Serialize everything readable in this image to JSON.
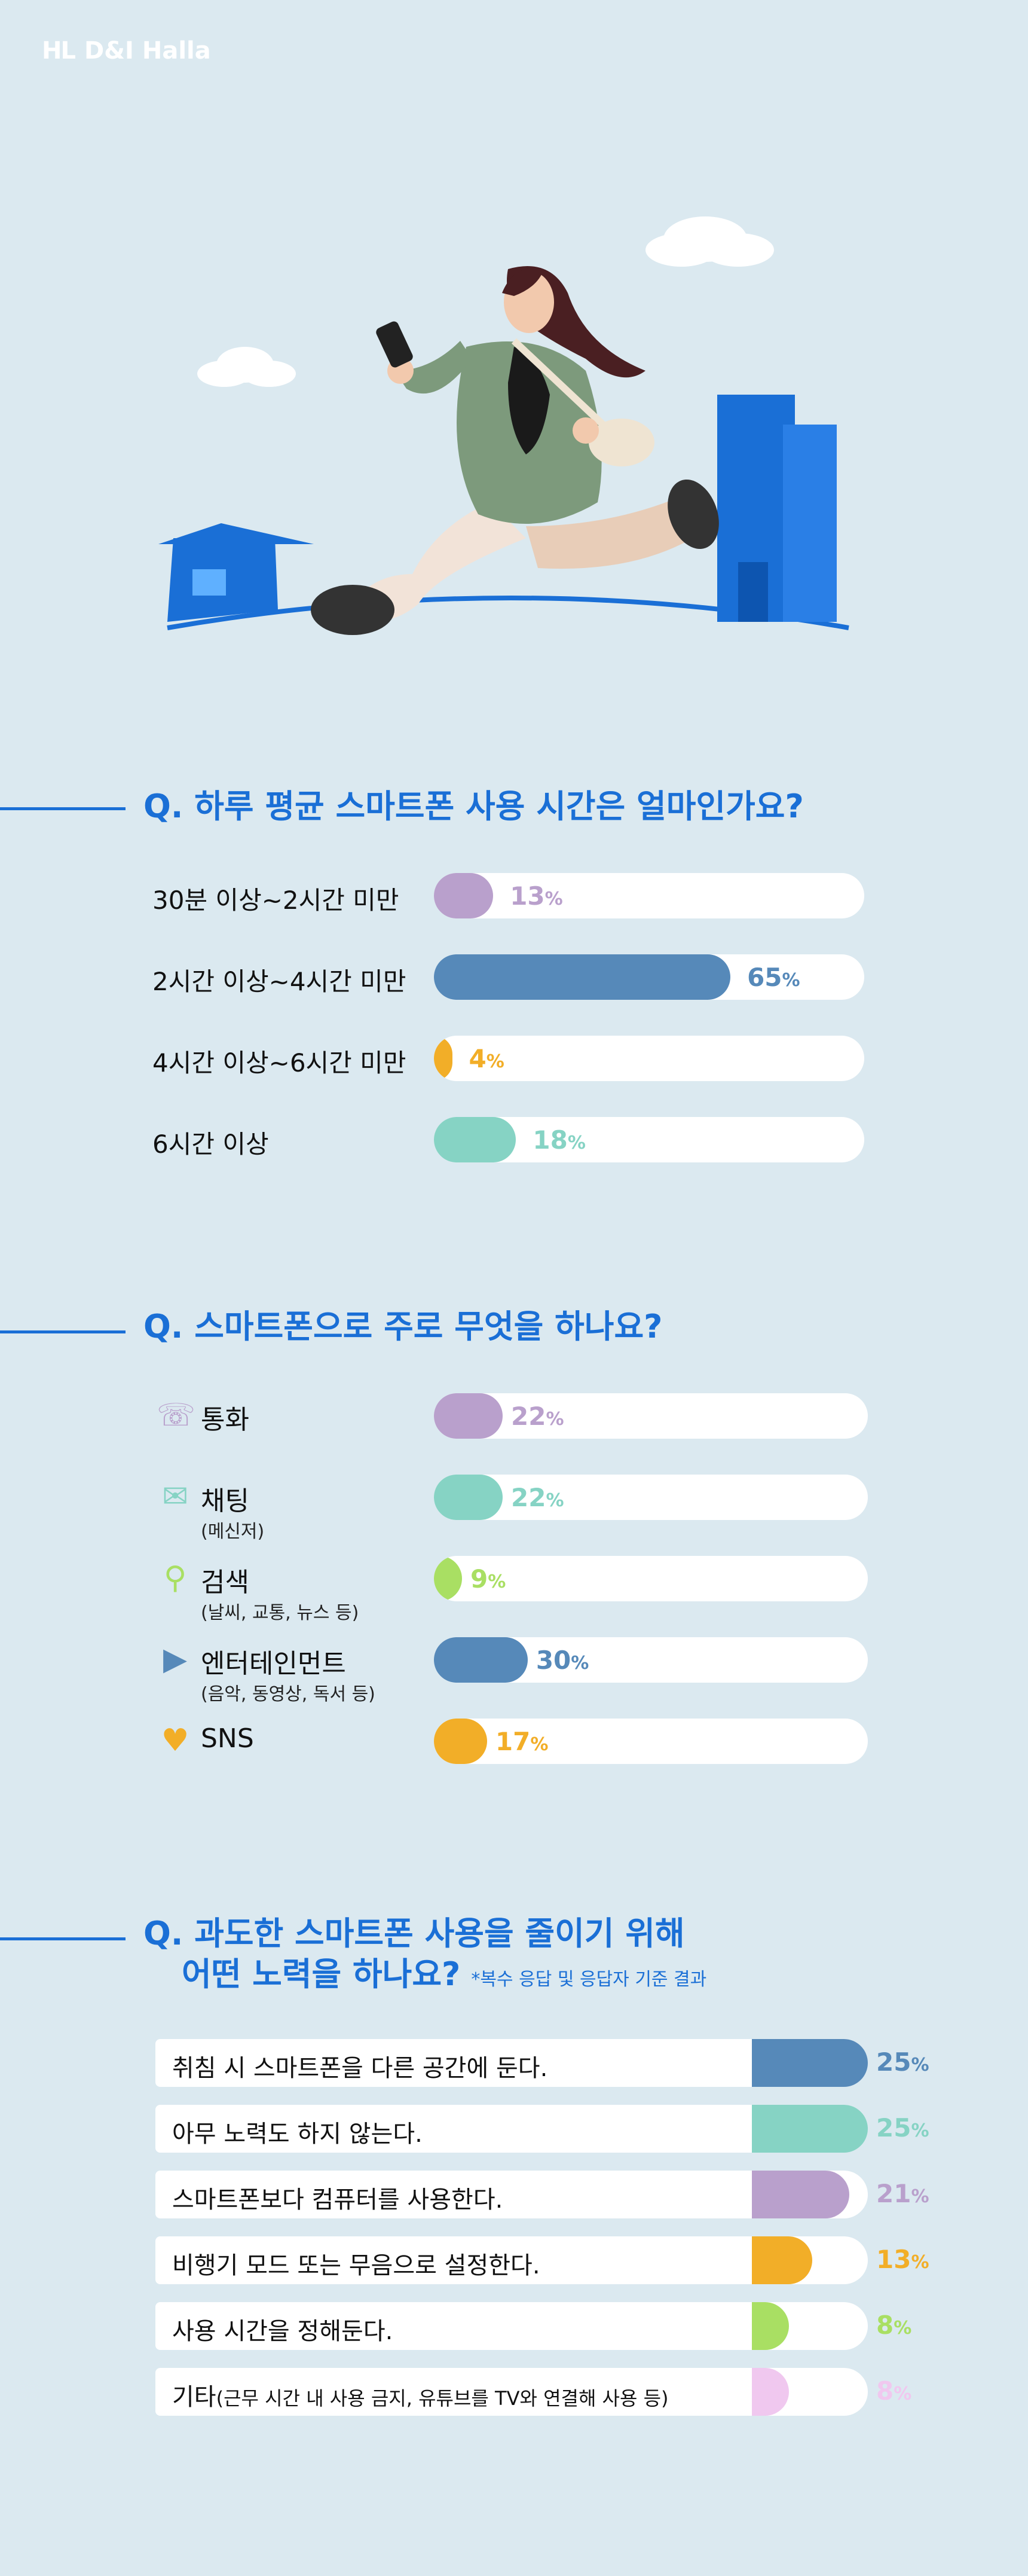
{
  "brand": {
    "mark": "HL",
    "name": "D&I Halla"
  },
  "colors": {
    "background": "#dbe9f0",
    "accent": "#1a6fd6",
    "purple": "#b9a0cc",
    "blue": "#5689b9",
    "orange": "#f2ae28",
    "mint": "#86d3c4",
    "green": "#a9df63",
    "pink": "#f0c8ef"
  },
  "q1": {
    "title": "Q. 하루 평균 스마트폰 사용 시간은 얼마인가요?",
    "items": [
      {
        "label": "30분 이상~2시간 미만",
        "value": 13,
        "display": "13",
        "color": "#b9a0cc"
      },
      {
        "label": "2시간 이상~4시간 미만",
        "value": 65,
        "display": "65",
        "color": "#5689b9"
      },
      {
        "label": "4시간 이상~6시간 미만",
        "value": 4,
        "display": "4",
        "color": "#f2ae28"
      },
      {
        "label": "6시간 이상",
        "value": 18,
        "display": "18",
        "color": "#86d3c4"
      }
    ]
  },
  "q2": {
    "title": "Q. 스마트폰으로 주로 무엇을 하나요?",
    "items": [
      {
        "label": "통화",
        "sub": "",
        "icon": "phone-call-icon",
        "value": 22,
        "display": "22",
        "color": "#b9a0cc"
      },
      {
        "label": "채팅",
        "sub": "(메신저)",
        "icon": "chat-icon",
        "value": 22,
        "display": "22",
        "color": "#86d3c4"
      },
      {
        "label": "검색",
        "sub": "(날씨, 교통, 뉴스 등)",
        "icon": "search-icon",
        "value": 9,
        "display": "9",
        "color": "#a9df63"
      },
      {
        "label": "엔터테인먼트",
        "sub": "(음악, 동영상, 독서 등)",
        "icon": "video-play-icon",
        "value": 30,
        "display": "30",
        "color": "#5689b9"
      },
      {
        "label": "SNS",
        "sub": "",
        "icon": "heart-chat-icon",
        "value": 17,
        "display": "17",
        "color": "#f2ae28"
      }
    ]
  },
  "q3": {
    "title_line1": "Q. 과도한 스마트폰 사용을 줄이기 위해",
    "title_line2": "어떤 노력을 하나요?",
    "note": "*복수 응답 및 응답자 기준 결과",
    "items": [
      {
        "label": "취침 시 스마트폰을 다른 공간에 둔다.",
        "sub": "",
        "value": 25,
        "display": "25",
        "color": "#5689b9"
      },
      {
        "label": "아무 노력도 하지 않는다.",
        "sub": "",
        "value": 25,
        "display": "25",
        "color": "#86d3c4"
      },
      {
        "label": "스마트폰보다 컴퓨터를 사용한다.",
        "sub": "",
        "value": 21,
        "display": "21",
        "color": "#b9a0cc"
      },
      {
        "label": "비행기 모드 또는 무음으로 설정한다.",
        "sub": "",
        "value": 13,
        "display": "13",
        "color": "#f2ae28"
      },
      {
        "label": "사용 시간을 정해둔다.",
        "sub": "",
        "value": 8,
        "display": "8",
        "color": "#a9df63"
      },
      {
        "label": "기타",
        "sub": "(근무 시간 내 사용 금지, 유튜브를 TV와 연결해 사용 등)",
        "value": 8,
        "display": "8",
        "color": "#f0c8ef"
      }
    ]
  },
  "chart_data": [
    {
      "type": "bar",
      "title": "Q. 하루 평균 스마트폰 사용 시간은 얼마인가요?",
      "categories": [
        "30분 이상~2시간 미만",
        "2시간 이상~4시간 미만",
        "4시간 이상~6시간 미만",
        "6시간 이상"
      ],
      "values": [
        13,
        65,
        4,
        18
      ],
      "unit": "%"
    },
    {
      "type": "bar",
      "title": "Q. 스마트폰으로 주로 무엇을 하나요?",
      "categories": [
        "통화",
        "채팅",
        "검색",
        "엔터테인먼트",
        "SNS"
      ],
      "values": [
        22,
        22,
        9,
        30,
        17
      ],
      "unit": "%"
    },
    {
      "type": "bar",
      "title": "Q. 과도한 스마트폰 사용을 줄이기 위해 어떤 노력을 하나요?",
      "categories": [
        "취침 시 스마트폰을 다른 공간에 둔다.",
        "아무 노력도 하지 않는다.",
        "스마트폰보다 컴퓨터를 사용한다.",
        "비행기 모드 또는 무음으로 설정한다.",
        "사용 시간을 정해둔다.",
        "기타(근무 시간 내 사용 금지, 유튜브를 TV와 연결해 사용 등)"
      ],
      "values": [
        25,
        25,
        21,
        13,
        8,
        8
      ],
      "unit": "%"
    }
  ]
}
